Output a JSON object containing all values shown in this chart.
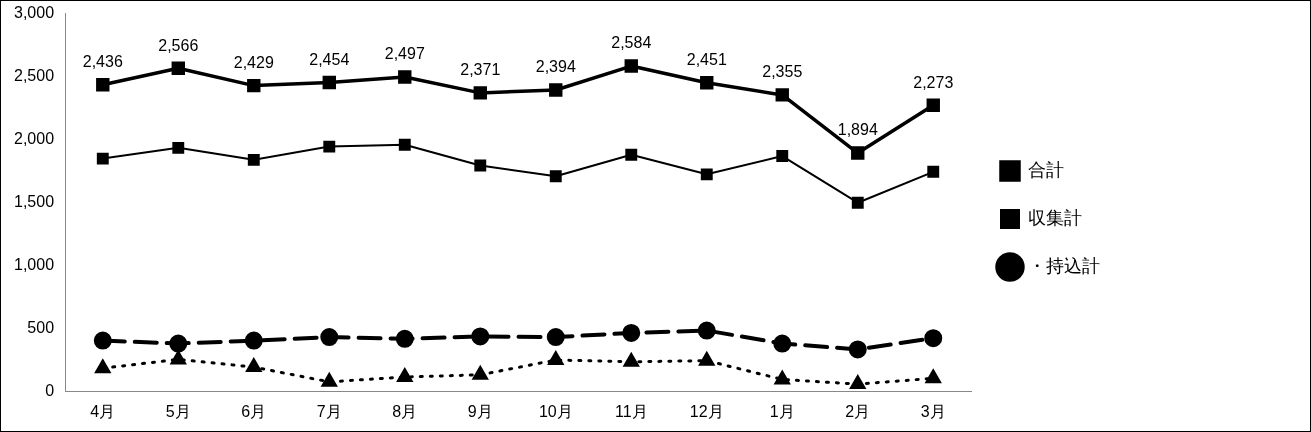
{
  "chart_data": {
    "type": "line",
    "categories": [
      "4月",
      "5月",
      "6月",
      "7月",
      "8月",
      "9月",
      "10月",
      "11月",
      "12月",
      "1月",
      "2月",
      "3月"
    ],
    "series": [
      {
        "name": "合計",
        "color": "#000000",
        "marker": "square",
        "line_style": "solid",
        "values": [
          2436,
          2566,
          2429,
          2454,
          2497,
          2371,
          2394,
          2584,
          2451,
          2355,
          1894,
          2273
        ],
        "value_labels": [
          "2,436",
          "2,566",
          "2,429",
          "2,454",
          "2,497",
          "2,371",
          "2,394",
          "2,584",
          "2,451",
          "2,355",
          "1,894",
          "2,273"
        ]
      },
      {
        "name": "収集計",
        "color": "#000000",
        "marker": "square",
        "line_style": "solid",
        "values": [
          1850,
          1935,
          1840,
          1945,
          1960,
          1795,
          1710,
          1880,
          1725,
          1870,
          1500,
          1745
        ]
      },
      {
        "name": "・持込計",
        "color": "#000000",
        "marker": "circle",
        "line_style": "dashed",
        "values": [
          406,
          383,
          406,
          434,
          420,
          439,
          434,
          467,
          486,
          383,
          336,
          425
        ]
      },
      {
        "color": "#000000",
        "marker": "triangle",
        "line_style": "dotted",
        "values": [
          187,
          257,
          196,
          79,
          117,
          135,
          252,
          238,
          247,
          98,
          61,
          107
        ]
      }
    ],
    "ylim": [
      0,
      3000
    ],
    "yticks": [
      {
        "value": 0,
        "label": "0"
      },
      {
        "value": 500,
        "label": "500"
      },
      {
        "value": 1000,
        "label": "1,000"
      },
      {
        "value": 1500,
        "label": "1,500"
      },
      {
        "value": 2000,
        "label": "2,000"
      },
      {
        "value": 2500,
        "label": "2,500"
      },
      {
        "value": 3000,
        "label": "3,000"
      }
    ],
    "grid": false,
    "legend": "right"
  }
}
